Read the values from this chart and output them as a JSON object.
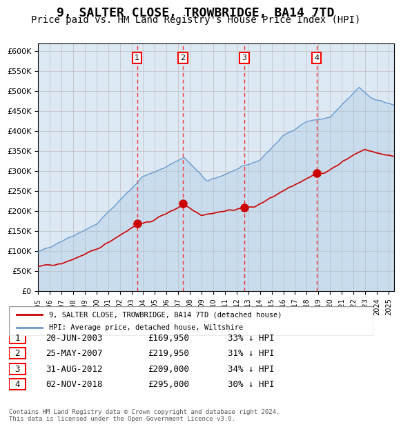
{
  "title": "9, SALTER CLOSE, TROWBRIDGE, BA14 7TD",
  "subtitle": "Price paid vs. HM Land Registry's House Price Index (HPI)",
  "title_fontsize": 13,
  "subtitle_fontsize": 10,
  "hpi_color": "#a8c4e0",
  "hpi_line_color": "#6699cc",
  "price_color": "#cc0000",
  "background_color": "#dce9f5",
  "ylabel": "",
  "ylim": [
    0,
    620000
  ],
  "ytick_step": 50000,
  "sales": [
    {
      "label": "1",
      "date": "20-JUN-2003",
      "price": 169950,
      "year": 2003.47,
      "pct": "33%"
    },
    {
      "label": "2",
      "date": "25-MAY-2007",
      "price": 219950,
      "year": 2007.4,
      "pct": "31%"
    },
    {
      "label": "3",
      "date": "31-AUG-2012",
      "price": 209000,
      "year": 2012.66,
      "pct": "34%"
    },
    {
      "label": "4",
      "date": "02-NOV-2018",
      "price": 295000,
      "year": 2018.84,
      "pct": "30%"
    }
  ],
  "legend_label_price": "9, SALTER CLOSE, TROWBRIDGE, BA14 7TD (detached house)",
  "legend_label_hpi": "HPI: Average price, detached house, Wiltshire",
  "footer": "Contains HM Land Registry data © Crown copyright and database right 2024.\nThis data is licensed under the Open Government Licence v3.0.",
  "xmin": 1995,
  "xmax": 2025.5
}
